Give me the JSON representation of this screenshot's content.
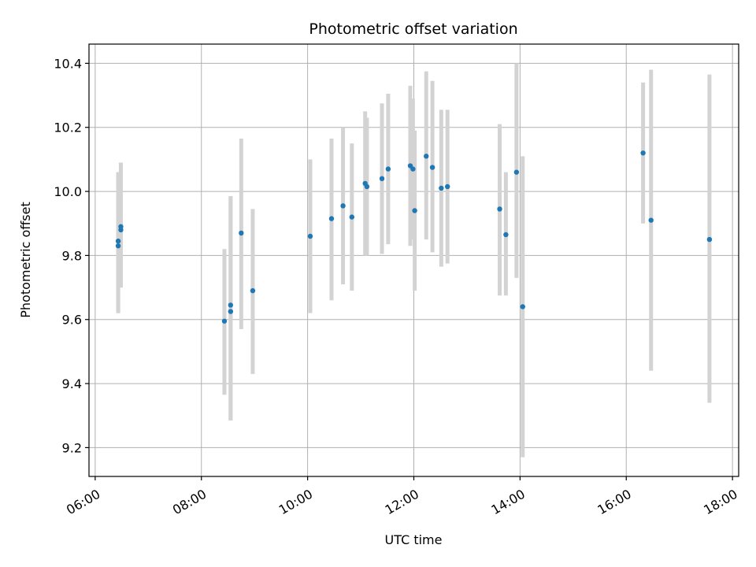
{
  "chart_data": {
    "type": "scatter",
    "title": "Photometric offset variation",
    "xlabel": "UTC time",
    "ylabel": "Photometric offset",
    "x_is_time": true,
    "xlim": [
      "05:53",
      "18:07"
    ],
    "ylim": [
      9.11,
      10.46
    ],
    "x_ticks": [
      "06:00",
      "08:00",
      "10:00",
      "12:00",
      "14:00",
      "16:00",
      "18:00"
    ],
    "y_ticks": [
      "9.2",
      "9.4",
      "9.6",
      "9.8",
      "10.0",
      "10.2",
      "10.4"
    ],
    "grid": true,
    "marker_color": "#1f77b4",
    "errorbar_color": "#d3d3d3",
    "points": [
      {
        "x": "06:26",
        "y": 9.83,
        "ylow": 9.62,
        "yhigh": 10.06
      },
      {
        "x": "06:26",
        "y": 9.845,
        "ylow": 9.62,
        "yhigh": 10.06
      },
      {
        "x": "06:29",
        "y": 9.88,
        "ylow": 9.7,
        "yhigh": 10.09
      },
      {
        "x": "06:29",
        "y": 9.89,
        "ylow": 9.7,
        "yhigh": 10.09
      },
      {
        "x": "08:26",
        "y": 9.595,
        "ylow": 9.365,
        "yhigh": 9.82
      },
      {
        "x": "08:33",
        "y": 9.625,
        "ylow": 9.285,
        "yhigh": 9.985
      },
      {
        "x": "08:33",
        "y": 9.645,
        "ylow": 9.285,
        "yhigh": 9.985
      },
      {
        "x": "08:45",
        "y": 9.87,
        "ylow": 9.57,
        "yhigh": 10.165
      },
      {
        "x": "08:58",
        "y": 9.69,
        "ylow": 9.43,
        "yhigh": 9.945
      },
      {
        "x": "10:03",
        "y": 9.86,
        "ylow": 9.62,
        "yhigh": 10.1
      },
      {
        "x": "10:27",
        "y": 9.915,
        "ylow": 9.66,
        "yhigh": 10.165
      },
      {
        "x": "10:40",
        "y": 9.955,
        "ylow": 9.71,
        "yhigh": 10.2
      },
      {
        "x": "10:50",
        "y": 9.92,
        "ylow": 9.69,
        "yhigh": 10.15
      },
      {
        "x": "11:05",
        "y": 10.025,
        "ylow": 9.8,
        "yhigh": 10.25
      },
      {
        "x": "11:07",
        "y": 10.015,
        "ylow": 9.8,
        "yhigh": 10.23
      },
      {
        "x": "11:24",
        "y": 10.04,
        "ylow": 9.805,
        "yhigh": 10.275
      },
      {
        "x": "11:31",
        "y": 10.07,
        "ylow": 9.835,
        "yhigh": 10.305
      },
      {
        "x": "11:56",
        "y": 10.08,
        "ylow": 9.83,
        "yhigh": 10.33
      },
      {
        "x": "11:59",
        "y": 10.07,
        "ylow": 9.85,
        "yhigh": 10.29
      },
      {
        "x": "12:01",
        "y": 9.94,
        "ylow": 9.69,
        "yhigh": 10.19
      },
      {
        "x": "12:14",
        "y": 10.11,
        "ylow": 9.85,
        "yhigh": 10.375
      },
      {
        "x": "12:21",
        "y": 10.075,
        "ylow": 9.81,
        "yhigh": 10.345
      },
      {
        "x": "12:31",
        "y": 10.01,
        "ylow": 9.765,
        "yhigh": 10.255
      },
      {
        "x": "12:38",
        "y": 10.015,
        "ylow": 9.775,
        "yhigh": 10.255
      },
      {
        "x": "13:37",
        "y": 9.945,
        "ylow": 9.675,
        "yhigh": 10.21
      },
      {
        "x": "13:44",
        "y": 9.865,
        "ylow": 9.675,
        "yhigh": 10.06
      },
      {
        "x": "13:56",
        "y": 10.06,
        "ylow": 9.73,
        "yhigh": 10.4
      },
      {
        "x": "14:03",
        "y": 9.64,
        "ylow": 9.17,
        "yhigh": 10.11
      },
      {
        "x": "16:19",
        "y": 10.12,
        "ylow": 9.9,
        "yhigh": 10.34
      },
      {
        "x": "16:28",
        "y": 9.91,
        "ylow": 9.44,
        "yhigh": 10.38
      },
      {
        "x": "17:34",
        "y": 9.85,
        "ylow": 9.34,
        "yhigh": 10.365
      }
    ]
  }
}
